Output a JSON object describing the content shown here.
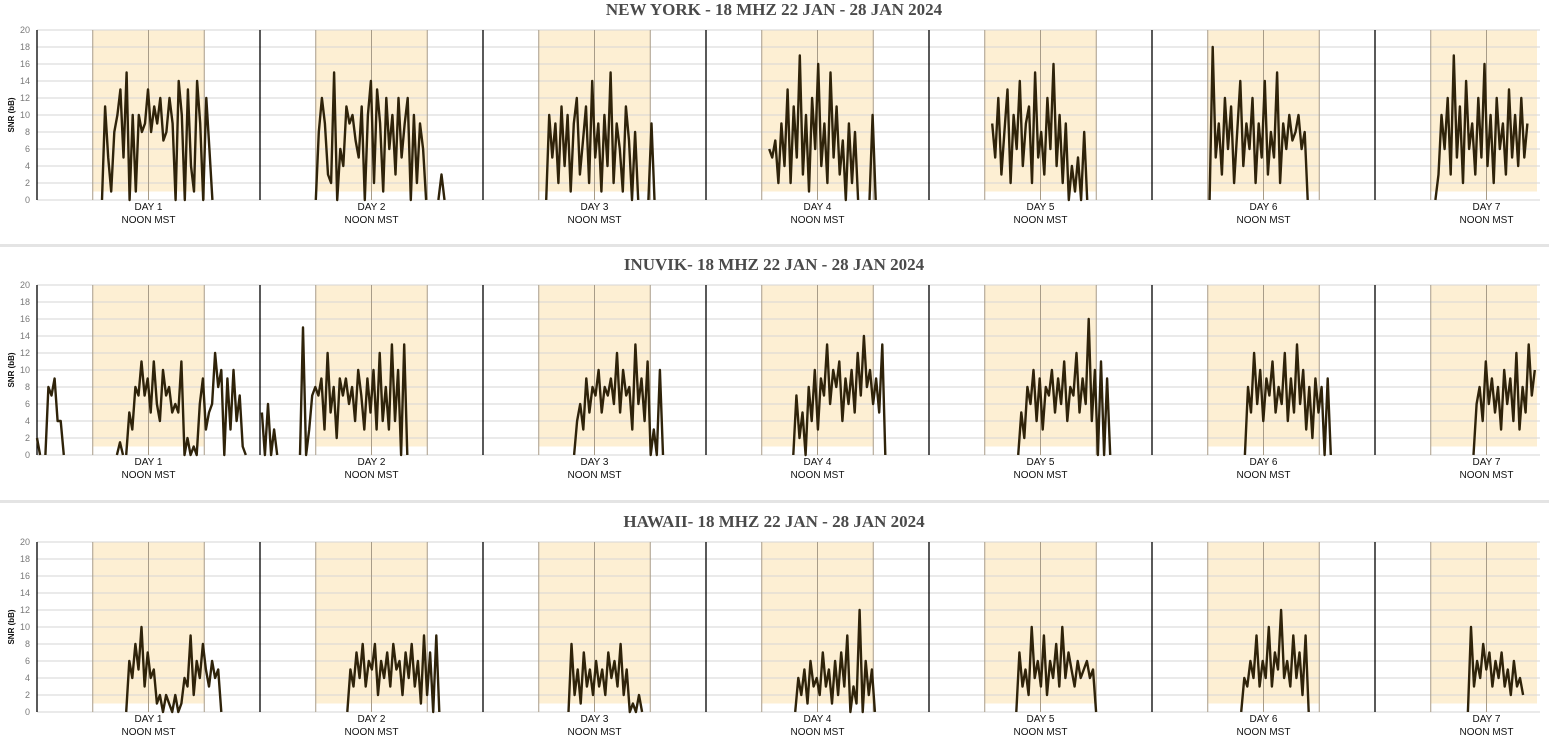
{
  "chart_data": [
    {
      "type": "line",
      "title": "NEW YORK - 18 MHZ 22 JAN - 28 JAN 2024",
      "ylabel": "SNR (bB)",
      "ylim": [
        0,
        20
      ],
      "yticks": [
        "0",
        "2",
        "4",
        "6",
        "8",
        "10",
        "12",
        "14",
        "16",
        "18",
        "20"
      ],
      "day_labels": [
        "DAY 1",
        "DAY 2",
        "DAY 3",
        "DAY 4",
        "DAY 5",
        "DAY 6",
        "DAY 7"
      ],
      "sub_label": "NOON MST",
      "shaded_daylight_hours": [
        6,
        18
      ],
      "step_hours": 0.33,
      "days": [
        {
          "segments": [
            {
              "start": 7.0,
              "values": [
                0,
                11,
                5,
                1,
                8,
                10,
                13,
                5,
                15,
                0,
                10,
                1,
                10,
                8,
                9,
                13,
                8,
                11,
                9,
                12,
                7,
                8,
                12,
                9,
                0,
                14,
                10,
                0,
                13,
                4,
                1,
                14,
                9,
                0,
                12,
                6,
                0
              ]
            }
          ]
        },
        {
          "segments": [
            {
              "start": 6.0,
              "values": [
                0,
                8,
                12,
                9,
                3,
                2,
                15,
                0,
                6,
                4,
                11,
                9,
                10,
                7,
                5,
                11,
                0,
                10,
                14,
                2,
                13,
                9,
                1,
                12,
                6,
                10,
                3,
                12,
                5,
                9,
                12,
                0,
                10,
                2,
                9,
                6,
                0
              ]
            },
            {
              "start": 19.2,
              "values": [
                0,
                3,
                0
              ]
            }
          ]
        },
        {
          "segments": [
            {
              "start": 6.8,
              "values": [
                0,
                10,
                5,
                9,
                2,
                11,
                4,
                10,
                1,
                9,
                12,
                3,
                7,
                11,
                2,
                14,
                5,
                9,
                1,
                10,
                4,
                15,
                2,
                9,
                6,
                1,
                11,
                7,
                0,
                8,
                0
              ]
            },
            {
              "start": 17.8,
              "values": [
                0,
                9,
                0
              ]
            }
          ]
        },
        {
          "segments": [
            {
              "start": 6.8,
              "values": [
                6,
                5,
                7,
                2,
                9,
                4,
                13,
                2,
                11,
                5,
                17,
                3,
                10,
                1,
                12,
                6,
                16,
                4,
                9,
                2,
                15,
                5,
                11,
                3,
                7,
                0,
                9,
                2,
                8,
                0
              ]
            },
            {
              "start": 17.6,
              "values": [
                0,
                10,
                0
              ]
            }
          ]
        },
        {
          "segments": [
            {
              "start": 6.8,
              "values": [
                9,
                5,
                12,
                3,
                8,
                13,
                2,
                10,
                6,
                14,
                4,
                9,
                11,
                2,
                15,
                5,
                8,
                3,
                12,
                6,
                16,
                4,
                10,
                2,
                9,
                0,
                4,
                1,
                5,
                0,
                8,
                0
              ]
            }
          ]
        },
        {
          "segments": [
            {
              "start": 6.2,
              "values": [
                0,
                18,
                5,
                9,
                3,
                12,
                6,
                11,
                2,
                8,
                14,
                4,
                9,
                6,
                12,
                2,
                9,
                5,
                14,
                3,
                8,
                5,
                15,
                2,
                9,
                6,
                10,
                7,
                8,
                10,
                6,
                8,
                0
              ]
            }
          ]
        },
        {
          "segments": [
            {
              "start": 6.5,
              "values": [
                0,
                3,
                10,
                6,
                12,
                3,
                17,
                5,
                11,
                2,
                14,
                6,
                9,
                3,
                12,
                5,
                16,
                4,
                10,
                2,
                12,
                6,
                9,
                3,
                13,
                5,
                10,
                4,
                12,
                5,
                9
              ]
            }
          ]
        }
      ]
    },
    {
      "type": "line",
      "title": "INUVIK- 18 MHZ 22 JAN - 28 JAN 2024",
      "ylabel": "SNR (bB)",
      "ylim": [
        0,
        20
      ],
      "yticks": [
        "0",
        "2",
        "4",
        "6",
        "8",
        "10",
        "12",
        "14",
        "16",
        "18",
        "20"
      ],
      "day_labels": [
        "DAY 1",
        "DAY 2",
        "DAY 3",
        "DAY 4",
        "DAY 5",
        "DAY 6",
        "DAY 7"
      ],
      "sub_label": "NOON MST",
      "shaded_daylight_hours": [
        6,
        18
      ],
      "step_hours": 0.33,
      "days": [
        {
          "segments": [
            {
              "start": 0,
              "values": [
                2,
                0
              ]
            },
            {
              "start": 0.9,
              "values": [
                0,
                8,
                7,
                9,
                4,
                4,
                0
              ]
            },
            {
              "start": 8.6,
              "values": [
                0,
                1.5,
                0
              ]
            },
            {
              "start": 9.6,
              "values": [
                0,
                5,
                3,
                8,
                7,
                11,
                7,
                9,
                5,
                11,
                6,
                4,
                10,
                7,
                8,
                5,
                6,
                5,
                11,
                0,
                2,
                0,
                1,
                0,
                6,
                9,
                3,
                5,
                6,
                12,
                8,
                10,
                0,
                9,
                3,
                10,
                4,
                7,
                1,
                0
              ]
            }
          ]
        },
        {
          "segments": [
            {
              "start": 0.2,
              "values": [
                5,
                0,
                6,
                0,
                3,
                0
              ]
            },
            {
              "start": 4.3,
              "values": [
                0,
                15,
                0,
                3,
                7,
                8,
                7,
                9,
                3,
                12,
                5,
                8,
                2,
                9,
                7,
                9,
                6,
                8,
                4,
                10,
                7,
                3,
                9,
                5,
                10,
                3,
                12,
                4,
                8,
                3,
                13,
                4,
                10,
                0,
                13,
                0
              ]
            }
          ]
        },
        {
          "segments": [
            {
              "start": 9.8,
              "values": [
                0,
                4,
                6,
                3,
                9,
                5,
                8,
                7,
                10,
                5,
                8,
                7,
                9,
                6,
                12,
                5,
                10,
                7,
                8,
                3,
                13,
                6,
                9,
                4,
                11,
                0,
                3,
                0,
                10,
                0
              ]
            }
          ]
        },
        {
          "segments": [
            {
              "start": 9.4,
              "values": [
                0,
                7,
                2,
                5,
                0,
                8,
                4,
                10,
                3,
                9,
                7,
                13,
                6,
                10,
                8,
                11,
                4,
                9,
                6,
                10,
                5,
                12,
                7,
                14,
                8,
                10,
                6,
                9,
                5,
                13,
                0
              ]
            }
          ]
        },
        {
          "segments": [
            {
              "start": 9.6,
              "values": [
                0,
                5,
                2,
                8,
                6,
                10,
                4,
                9,
                3,
                8,
                7,
                10,
                5,
                9,
                6,
                11,
                4,
                8,
                7,
                12,
                5,
                9,
                6,
                16,
                4,
                10,
                0,
                11,
                0,
                9,
                0
              ]
            }
          ]
        },
        {
          "segments": [
            {
              "start": 10.0,
              "values": [
                0,
                8,
                5,
                12,
                6,
                10,
                4,
                9,
                7,
                11,
                5,
                8,
                6,
                12,
                4,
                9,
                5,
                13,
                6,
                10,
                3,
                8,
                2,
                9,
                5,
                8,
                0,
                9,
                0
              ]
            }
          ]
        },
        {
          "segments": [
            {
              "start": 10.6,
              "values": [
                0,
                6,
                8,
                4,
                11,
                6,
                9,
                5,
                8,
                3,
                10,
                6,
                9,
                4,
                12,
                3,
                8,
                5,
                13,
                7,
                10
              ]
            }
          ]
        }
      ]
    },
    {
      "type": "line",
      "title": "HAWAII- 18 MHZ 22 JAN - 28 JAN 2024",
      "ylabel": "SNR (bB)",
      "ylim": [
        0,
        20
      ],
      "yticks": [
        "0",
        "2",
        "4",
        "6",
        "8",
        "10",
        "12",
        "14",
        "16",
        "18",
        "20"
      ],
      "day_labels": [
        "DAY 1",
        "DAY 2",
        "DAY 3",
        "DAY 4",
        "DAY 5",
        "DAY 6",
        "DAY 7"
      ],
      "sub_label": "NOON MST",
      "shaded_daylight_hours": [
        6,
        18
      ],
      "step_hours": 0.33,
      "days": [
        {
          "segments": [
            {
              "start": 9.6,
              "values": [
                0,
                6,
                4,
                8,
                5,
                10,
                3,
                7,
                4,
                5,
                1,
                2,
                0,
                2,
                1,
                0,
                2,
                0,
                1,
                4,
                3,
                9,
                2,
                6,
                4,
                8,
                5,
                3,
                6,
                4,
                5,
                0
              ]
            }
          ]
        },
        {
          "segments": [
            {
              "start": 9.4,
              "values": [
                0,
                5,
                3,
                7,
                4,
                8,
                3,
                6,
                5,
                8,
                2,
                6,
                4,
                7,
                3,
                8,
                5,
                6,
                2,
                7,
                4,
                8,
                3,
                6,
                1,
                9,
                2,
                7,
                0,
                9,
                0
              ]
            }
          ]
        },
        {
          "segments": [
            {
              "start": 9.2,
              "values": [
                0,
                8,
                2,
                5,
                1,
                7,
                3,
                5,
                2,
                6,
                3,
                5,
                2,
                7,
                4,
                6,
                3,
                8,
                2,
                5,
                0,
                1,
                0,
                2,
                0
              ]
            }
          ]
        },
        {
          "segments": [
            {
              "start": 9.6,
              "values": [
                0,
                4,
                2,
                5,
                1,
                6,
                3,
                4,
                2,
                7,
                3,
                5,
                1,
                6,
                2,
                7,
                3,
                9,
                0,
                3,
                1,
                12,
                0,
                6,
                2,
                5,
                0
              ]
            }
          ]
        },
        {
          "segments": [
            {
              "start": 9.4,
              "values": [
                0,
                7,
                3,
                5,
                2,
                10,
                4,
                6,
                3,
                9,
                2,
                6,
                4,
                8,
                3,
                10,
                4,
                7,
                5,
                3,
                6,
                4,
                5,
                6,
                4,
                5,
                0
              ]
            }
          ]
        },
        {
          "segments": [
            {
              "start": 9.6,
              "values": [
                0,
                4,
                3,
                6,
                4,
                9,
                3,
                6,
                4,
                10,
                3,
                7,
                5,
                12,
                4,
                6,
                3,
                9,
                4,
                7,
                2,
                9,
                0
              ]
            }
          ]
        },
        {
          "segments": [
            {
              "start": 10.0,
              "values": [
                0,
                10,
                3,
                6,
                4,
                8,
                5,
                7,
                3,
                6,
                4,
                7,
                3,
                5,
                2,
                6,
                3,
                4,
                2
              ]
            }
          ]
        }
      ]
    }
  ]
}
